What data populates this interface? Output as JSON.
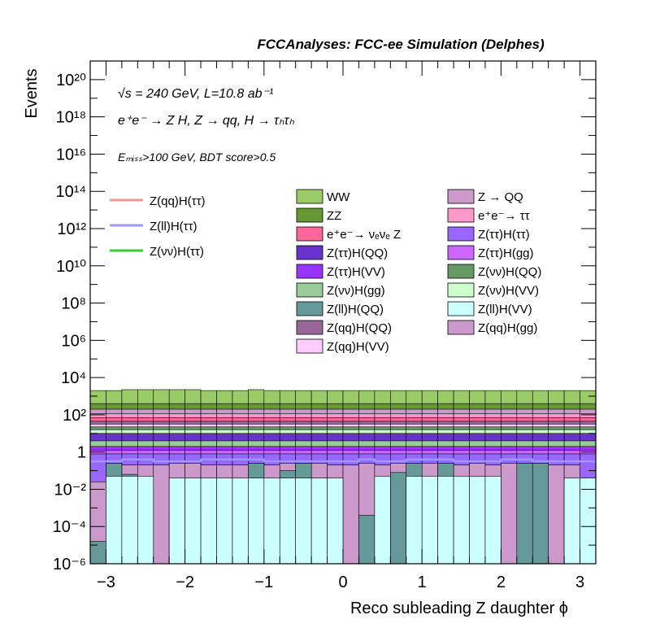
{
  "header": {
    "title": "FCCAnalyses: FCC-ee Simulation (Delphes)"
  },
  "annotations": {
    "line1": "√s = 240 GeV, L=10.8 ab⁻¹",
    "line2": "e⁺e⁻ → Z H, Z → qq, H → τₕτₕ",
    "line3": "Eₘᵢₛₛ>100 GeV, BDT score>0.5"
  },
  "chart_data": {
    "type": "area",
    "title": "FCCAnalyses: FCC-ee Simulation (Delphes)",
    "xlabel": "Reco subleading Z daughter ϕ",
    "ylabel": "Events",
    "xlim": [
      -3.2,
      3.2
    ],
    "ylim_log10": [
      -6,
      21
    ],
    "yscale": "log",
    "x_ticks": [
      "−3",
      "−2",
      "−1",
      "0",
      "1",
      "2",
      "3"
    ],
    "x_tick_values": [
      -3,
      -2,
      -1,
      0,
      1,
      2,
      3
    ],
    "y_ticks": [
      "10⁻⁶",
      "10⁻⁴",
      "10⁻²",
      "1",
      "10²",
      "10⁴",
      "10⁶",
      "10⁸",
      "10¹⁰",
      "10¹²",
      "10¹⁴",
      "10¹⁶",
      "10¹⁸",
      "10²⁰"
    ],
    "y_tick_exponents": [
      -6,
      -4,
      -2,
      0,
      2,
      4,
      6,
      8,
      10,
      12,
      14,
      16,
      18,
      20
    ],
    "n_bins": 32,
    "legend_lines": [
      {
        "name": "Z(qq)H(ττ)",
        "color": "#f4948f"
      },
      {
        "name": "Z(ll)H(ττ)",
        "color": "#9999ff"
      },
      {
        "name": "Z(νν)H(ττ)",
        "color": "#33cc33"
      }
    ],
    "legend_stack": [
      {
        "name": "WW",
        "color": "#99cc66"
      },
      {
        "name": "Z → QQ",
        "color": "#cc99cc"
      },
      {
        "name": "ZZ",
        "color": "#669933"
      },
      {
        "name": "e⁺e⁻→ ττ",
        "color": "#ff99cc"
      },
      {
        "name": "e⁺e⁻→ νₑνₑ Z",
        "color": "#ff6699"
      },
      {
        "name": "Z(ττ)H(ττ)",
        "color": "#9966ff"
      },
      {
        "name": "Z(ττ)H(QQ)",
        "color": "#6633cc"
      },
      {
        "name": "Z(ττ)H(gg)",
        "color": "#cc66ff"
      },
      {
        "name": "Z(ττ)H(VV)",
        "color": "#9933ff"
      },
      {
        "name": "Z(νν)H(QQ)",
        "color": "#669966"
      },
      {
        "name": "Z(νν)H(gg)",
        "color": "#99cc99"
      },
      {
        "name": "Z(νν)H(VV)",
        "color": "#ccffcc"
      },
      {
        "name": "Z(ll)H(QQ)",
        "color": "#669999"
      },
      {
        "name": "Z(ll)H(VV)",
        "color": "#ccffff"
      },
      {
        "name": "Z(qq)H(QQ)",
        "color": "#996699"
      },
      {
        "name": "Z(qq)H(gg)",
        "color": "#cc99cc"
      },
      {
        "name": "Z(qq)H(VV)",
        "color": "#ffccff"
      }
    ],
    "stack_layers": [
      {
        "name": "Z(ll)H(VV)",
        "color": "#ccffff",
        "log10_values": [
          -6,
          -1.3,
          -1.3,
          -1.3,
          -6,
          -1.4,
          -1.4,
          -1.4,
          -1.4,
          -1.4,
          -1.4,
          -1.4,
          -1.4,
          -1.4,
          -1.4,
          -1.4,
          -6,
          -6,
          -1.3,
          -6,
          -1.3,
          -1.3,
          -1.3,
          -1.3,
          -1.3,
          -1.3,
          -6,
          -6,
          -6,
          -6,
          -1.4,
          -1.4
        ]
      },
      {
        "name": "Z(ll)H(QQ)",
        "color": "#669999",
        "log10_values": [
          -4.8,
          -0.6,
          -1.2,
          -6,
          -6,
          -3.4,
          -3.4,
          -6,
          -6,
          -6,
          -0.6,
          -6,
          -1.0,
          -0.6,
          -1.4,
          -6,
          -6,
          -3.4,
          -6,
          -1.1,
          -0.6,
          -3.4,
          -0.6,
          -6,
          -1.3,
          -6,
          -6,
          -0.6,
          -0.6,
          -6,
          -6,
          -4.8
        ]
      },
      {
        "name": "Z(qq)H(gg)",
        "color": "#cc99cc",
        "log10_values": [
          -1.6,
          -0.6,
          -0.7,
          -0.7,
          -0.7,
          -0.6,
          -0.6,
          -0.7,
          -0.7,
          -0.7,
          -0.6,
          -0.7,
          -0.6,
          -0.6,
          -0.6,
          -0.7,
          -0.7,
          -0.6,
          -0.7,
          -0.6,
          -0.6,
          -0.6,
          -0.6,
          -0.7,
          -0.6,
          -0.7,
          -0.6,
          -0.6,
          -0.6,
          -0.7,
          -0.7,
          -1.6
        ]
      },
      {
        "name": "Z(ττ)H(ττ)",
        "color": "#9966ff",
        "log10_values": [
          -0.1,
          -0.1,
          -0.1,
          -0.1,
          -0.1,
          -0.1,
          -0.1,
          -0.1,
          -0.1,
          -0.1,
          -0.1,
          -0.1,
          -0.1,
          -0.1,
          -0.1,
          -0.1,
          -0.1,
          -0.1,
          -0.1,
          -0.1,
          -0.1,
          -0.1,
          -0.1,
          -0.1,
          -0.1,
          -0.1,
          -0.1,
          -0.1,
          -0.1,
          -0.1,
          -0.1,
          -0.1
        ]
      },
      {
        "name": "Z(ττ)H(gg)",
        "color": "#cc66ff",
        "log10_values": [
          0.1,
          0.1,
          0.1,
          0.1,
          0.1,
          0.1,
          0.1,
          0.1,
          0.1,
          0.1,
          0.1,
          0.1,
          0.1,
          0.1,
          0.1,
          0.1,
          0.1,
          0.1,
          0.1,
          0.1,
          0.1,
          0.1,
          0.1,
          0.1,
          0.1,
          0.1,
          0.1,
          0.1,
          0.1,
          0.1,
          0.1,
          0.1
        ]
      },
      {
        "name": "Z(ττ)H(VV)",
        "color": "#9933ff",
        "log10_values": [
          0.3,
          0.3,
          0.3,
          0.3,
          0.3,
          0.3,
          0.3,
          0.3,
          0.3,
          0.3,
          0.3,
          0.3,
          0.3,
          0.3,
          0.3,
          0.3,
          0.3,
          0.3,
          0.3,
          0.3,
          0.3,
          0.3,
          0.3,
          0.3,
          0.3,
          0.3,
          0.3,
          0.3,
          0.3,
          0.3,
          0.3,
          0.3
        ]
      },
      {
        "name": "Z(νν)H(gg)",
        "color": "#99cc99",
        "log10_values": [
          0.6,
          0.6,
          0.6,
          0.6,
          0.6,
          0.6,
          0.6,
          0.6,
          0.6,
          0.6,
          0.6,
          0.6,
          0.6,
          0.6,
          0.6,
          0.6,
          0.6,
          0.6,
          0.6,
          0.6,
          0.6,
          0.6,
          0.6,
          0.6,
          0.6,
          0.6,
          0.6,
          0.6,
          0.6,
          0.6,
          0.6,
          0.6
        ]
      },
      {
        "name": "Z(ττ)H(QQ)",
        "color": "#6633cc",
        "log10_values": [
          1.0,
          1.0,
          1.0,
          1.0,
          1.0,
          1.0,
          1.0,
          1.0,
          1.0,
          1.0,
          1.0,
          1.0,
          1.0,
          1.0,
          1.0,
          1.0,
          1.0,
          1.0,
          1.0,
          1.0,
          1.0,
          1.0,
          1.0,
          1.0,
          1.0,
          1.0,
          1.0,
          1.0,
          1.0,
          1.0,
          1.0,
          1.0
        ]
      },
      {
        "name": "Z(νν)H(VV)",
        "color": "#ccffcc",
        "log10_values": [
          1.2,
          1.2,
          1.2,
          1.2,
          1.2,
          1.2,
          1.2,
          1.2,
          1.2,
          1.2,
          1.2,
          1.2,
          1.2,
          1.2,
          1.2,
          1.2,
          1.2,
          1.2,
          1.2,
          1.2,
          1.2,
          1.2,
          1.2,
          1.2,
          1.2,
          1.2,
          1.2,
          1.2,
          1.2,
          1.2,
          1.2,
          1.2
        ]
      },
      {
        "name": "Z(νν)H(QQ)",
        "color": "#669966",
        "log10_values": [
          1.35,
          1.35,
          1.35,
          1.35,
          1.35,
          1.35,
          1.35,
          1.35,
          1.35,
          1.35,
          1.35,
          1.35,
          1.35,
          1.35,
          1.35,
          1.35,
          1.35,
          1.35,
          1.35,
          1.35,
          1.35,
          1.35,
          1.35,
          1.35,
          1.35,
          1.35,
          1.35,
          1.35,
          1.35,
          1.35,
          1.35,
          1.35
        ]
      },
      {
        "name": "Z(qq)H(VV)",
        "color": "#ffccff",
        "log10_values": [
          1.5,
          1.5,
          1.5,
          1.5,
          1.5,
          1.5,
          1.5,
          1.5,
          1.5,
          1.5,
          1.5,
          1.5,
          1.5,
          1.5,
          1.5,
          1.5,
          1.5,
          1.5,
          1.5,
          1.5,
          1.5,
          1.5,
          1.5,
          1.5,
          1.5,
          1.5,
          1.5,
          1.5,
          1.5,
          1.5,
          1.5,
          1.5
        ]
      },
      {
        "name": "Z(qq)H(QQ)",
        "color": "#996699",
        "log10_values": [
          1.65,
          1.65,
          1.65,
          1.65,
          1.65,
          1.65,
          1.65,
          1.65,
          1.65,
          1.65,
          1.65,
          1.65,
          1.65,
          1.65,
          1.65,
          1.65,
          1.65,
          1.65,
          1.65,
          1.65,
          1.65,
          1.65,
          1.65,
          1.65,
          1.65,
          1.65,
          1.65,
          1.65,
          1.65,
          1.65,
          1.65,
          1.65
        ]
      },
      {
        "name": "e⁺e⁻→ νₑνₑ Z",
        "color": "#ff6699",
        "log10_values": [
          1.85,
          1.85,
          1.85,
          1.85,
          1.85,
          1.85,
          1.85,
          1.85,
          1.85,
          1.85,
          1.85,
          1.85,
          1.85,
          1.85,
          1.85,
          1.85,
          1.85,
          1.85,
          1.85,
          1.85,
          1.85,
          1.85,
          1.85,
          1.85,
          1.85,
          1.85,
          1.85,
          1.85,
          1.85,
          1.85,
          1.85,
          1.85
        ]
      },
      {
        "name": "e⁺e⁻→ ττ",
        "color": "#ff99cc",
        "log10_values": [
          2.05,
          2.05,
          2.05,
          2.05,
          2.05,
          2.05,
          2.05,
          2.05,
          2.05,
          2.05,
          2.05,
          2.05,
          2.05,
          2.05,
          2.05,
          2.05,
          2.05,
          2.05,
          2.05,
          2.05,
          2.05,
          2.05,
          2.05,
          2.05,
          2.05,
          2.05,
          2.05,
          2.05,
          2.05,
          2.05,
          2.05,
          2.05
        ]
      },
      {
        "name": "Z → QQ",
        "color": "#cc99cc",
        "log10_values": [
          2.3,
          2.3,
          2.3,
          2.3,
          2.3,
          2.3,
          2.3,
          2.3,
          2.3,
          2.3,
          2.3,
          2.3,
          2.3,
          2.3,
          2.3,
          2.3,
          2.3,
          2.3,
          2.3,
          2.3,
          2.3,
          2.3,
          2.3,
          2.3,
          2.3,
          2.3,
          2.3,
          2.3,
          2.3,
          2.3,
          2.3,
          2.3
        ]
      },
      {
        "name": "ZZ",
        "color": "#669933",
        "log10_values": [
          2.6,
          2.6,
          2.6,
          2.6,
          2.6,
          2.6,
          2.6,
          2.6,
          2.6,
          2.6,
          2.6,
          2.6,
          2.6,
          2.6,
          2.6,
          2.6,
          2.6,
          2.6,
          2.6,
          2.6,
          2.6,
          2.6,
          2.6,
          2.6,
          2.6,
          2.6,
          2.6,
          2.6,
          2.6,
          2.6,
          2.6,
          2.6
        ]
      },
      {
        "name": "WW",
        "color": "#99cc66",
        "log10_values": [
          3.3,
          3.3,
          3.35,
          3.35,
          3.35,
          3.35,
          3.35,
          3.3,
          3.3,
          3.3,
          3.35,
          3.3,
          3.3,
          3.3,
          3.3,
          3.3,
          3.3,
          3.3,
          3.3,
          3.3,
          3.3,
          3.3,
          3.3,
          3.3,
          3.3,
          3.3,
          3.3,
          3.3,
          3.3,
          3.3,
          3.3,
          3.3
        ]
      }
    ],
    "line_series": [
      {
        "name": "Z(ll)H(ττ)",
        "color": "#9999ff",
        "log10_values": [
          -0.5,
          -0.5,
          -0.4,
          -0.4,
          -0.5,
          -0.5,
          -0.5,
          -0.4,
          -0.4,
          -0.4,
          -0.4,
          -0.5,
          -0.5,
          -0.5,
          -0.5,
          -0.5,
          -0.5,
          -0.4,
          -0.5,
          -0.5,
          -0.4,
          -0.4,
          -0.4,
          -0.5,
          -0.5,
          -0.5,
          -0.4,
          -0.4,
          -0.5,
          -0.5,
          -0.5,
          -0.5
        ]
      }
    ]
  }
}
